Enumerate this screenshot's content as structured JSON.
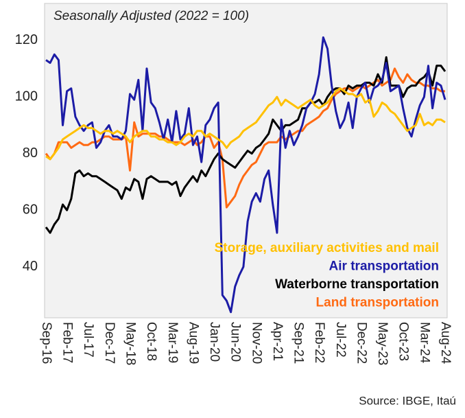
{
  "chart_data": {
    "type": "line",
    "subtitle": "Seasonally Adjusted (2022 = 100)",
    "source": "Source: IBGE, Itaú",
    "categories": [
      "Sep-16",
      null,
      null,
      null,
      null,
      "Feb-17",
      null,
      null,
      null,
      null,
      "Jul-17",
      null,
      null,
      null,
      null,
      "Dec-17",
      null,
      null,
      null,
      null,
      "May-18",
      null,
      null,
      null,
      null,
      "Oct-18",
      null,
      null,
      null,
      null,
      "Mar-19",
      null,
      null,
      null,
      null,
      "Aug-19",
      null,
      null,
      null,
      null,
      "Jan-20",
      null,
      null,
      null,
      null,
      "Jun-20",
      null,
      null,
      null,
      null,
      "Nov-20",
      null,
      null,
      null,
      null,
      "Apr-21",
      null,
      null,
      null,
      null,
      "Sep-21",
      null,
      null,
      null,
      null,
      "Feb-22",
      null,
      null,
      null,
      null,
      "Jul-22",
      null,
      null,
      null,
      null,
      "Dec-22",
      null,
      null,
      null,
      null,
      "May-23",
      null,
      null,
      null,
      null,
      "Oct-23",
      null,
      null,
      null,
      null,
      "Mar-24",
      null,
      null,
      null,
      null,
      "Aug-24"
    ],
    "series": [
      {
        "name": "Storage, auxiliary activities and mail",
        "color": "#ffc000",
        "values": [
          79,
          78,
          80,
          82,
          85,
          86,
          87,
          88,
          89,
          90,
          89,
          89,
          88,
          87,
          88,
          88,
          87,
          88,
          87,
          86,
          84,
          86,
          87,
          88,
          88,
          86,
          86,
          85,
          85,
          84,
          84,
          83,
          84,
          86,
          87,
          86,
          88,
          88,
          86,
          87,
          86,
          85,
          84,
          82,
          84,
          85,
          86,
          88,
          89,
          90,
          91,
          93,
          95,
          97,
          98,
          100,
          97,
          99,
          98,
          97,
          96,
          97,
          98,
          99,
          97,
          96,
          97,
          98,
          100,
          102,
          103,
          102,
          101,
          101,
          100,
          101,
          98,
          99,
          93,
          95,
          98,
          97,
          95,
          94,
          92,
          90,
          88,
          89,
          90,
          94,
          90,
          91,
          90,
          92,
          92,
          91
        ]
      },
      {
        "name": "Air transportation",
        "color": "#1c1ca6",
        "values": [
          113,
          112,
          115,
          113,
          90,
          102,
          103,
          93,
          90,
          88,
          90,
          91,
          82,
          84,
          88,
          90,
          86,
          86,
          85,
          88,
          101,
          99,
          106,
          88,
          110,
          98,
          96,
          91,
          85,
          92,
          84,
          95,
          85,
          87,
          96,
          83,
          86,
          77,
          90,
          92,
          96,
          98,
          30,
          28,
          24,
          33,
          37,
          40,
          56,
          63,
          66,
          63,
          71,
          74,
          62,
          52,
          92,
          82,
          88,
          83,
          86,
          90,
          96,
          98,
          101,
          108,
          121,
          117,
          104,
          95,
          89,
          92,
          98,
          89,
          100,
          103,
          105,
          98,
          103,
          104,
          106,
          112,
          102,
          103,
          104,
          96,
          89,
          86,
          92,
          97,
          100,
          111,
          96,
          105,
          104,
          99
        ]
      },
      {
        "name": "Waterborne transportation",
        "color": "#000000",
        "values": [
          54,
          52,
          55,
          57,
          62,
          60,
          64,
          73,
          74,
          72,
          73,
          72,
          72,
          71,
          70,
          69,
          68,
          67,
          64,
          68,
          67,
          71,
          70,
          64,
          71,
          72,
          71,
          70,
          70,
          70,
          69,
          70,
          65,
          68,
          70,
          72,
          70,
          74,
          72,
          75,
          78,
          80,
          78,
          77,
          76,
          75,
          77,
          79,
          81,
          80,
          82,
          83,
          85,
          87,
          92,
          90,
          88,
          90,
          90,
          91,
          92,
          96,
          96,
          98,
          98,
          99,
          97,
          100,
          102,
          103,
          103,
          101,
          104,
          103,
          104,
          104,
          105,
          105,
          104,
          108,
          105,
          114,
          104,
          104,
          104,
          100,
          103,
          104,
          104,
          106,
          107,
          109,
          104,
          111,
          111,
          109
        ]
      },
      {
        "name": "Land transportation",
        "color": "#ff6a13",
        "values": [
          80,
          78,
          80,
          84,
          84,
          84,
          82,
          83,
          84,
          83,
          83,
          84,
          84,
          85,
          86,
          86,
          85,
          85,
          85,
          86,
          74,
          91,
          86,
          87,
          87,
          87,
          87,
          86,
          86,
          85,
          84,
          84,
          84,
          83,
          84,
          85,
          83,
          84,
          86,
          86,
          82,
          84,
          78,
          61,
          63,
          65,
          69,
          72,
          74,
          76,
          77,
          80,
          83,
          84,
          84,
          84,
          86,
          85,
          86,
          87,
          88,
          88,
          90,
          91,
          92,
          93,
          95,
          96,
          99,
          101,
          102,
          103,
          103,
          102,
          103,
          104,
          103,
          104,
          105,
          106,
          104,
          105,
          106,
          110,
          107,
          105,
          108,
          106,
          105,
          105,
          104,
          104,
          103,
          103,
          102,
          102
        ]
      }
    ],
    "ylim": [
      22,
      133
    ],
    "yticks": [
      40,
      60,
      80,
      100,
      120
    ],
    "grid": false
  }
}
